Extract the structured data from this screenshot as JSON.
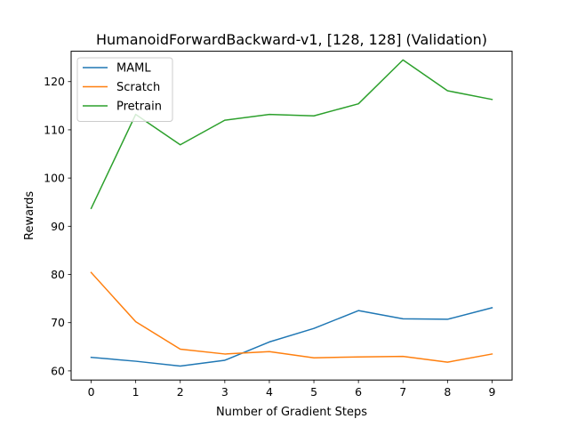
{
  "chart_data": {
    "type": "line",
    "title": "HumanoidForwardBackward-v1, [128, 128] (Validation)",
    "xlabel": "Number of Gradient Steps",
    "ylabel": "Rewards",
    "x": [
      0,
      1,
      2,
      3,
      4,
      5,
      6,
      7,
      8,
      9
    ],
    "xticks": [
      0,
      1,
      2,
      3,
      4,
      5,
      6,
      7,
      8,
      9
    ],
    "yticks": [
      60,
      70,
      80,
      90,
      100,
      110,
      120
    ],
    "xlim": [
      -0.45,
      9.45
    ],
    "ylim": [
      58.1,
      126.3
    ],
    "grid": false,
    "legend_position": "top-left",
    "series": [
      {
        "name": "MAML",
        "color": "#1f77b4",
        "values": [
          62.8,
          62.0,
          61.0,
          62.2,
          66.0,
          68.8,
          72.5,
          70.8,
          70.7,
          73.1
        ]
      },
      {
        "name": "Scratch",
        "color": "#ff7f0e",
        "values": [
          80.4,
          70.2,
          64.5,
          63.5,
          64.0,
          62.7,
          62.9,
          63.0,
          61.8,
          63.5
        ]
      },
      {
        "name": "Pretrain",
        "color": "#2ca02c",
        "values": [
          93.7,
          113.2,
          106.9,
          112.0,
          113.2,
          112.9,
          115.4,
          124.5,
          118.1,
          116.3
        ]
      }
    ]
  }
}
